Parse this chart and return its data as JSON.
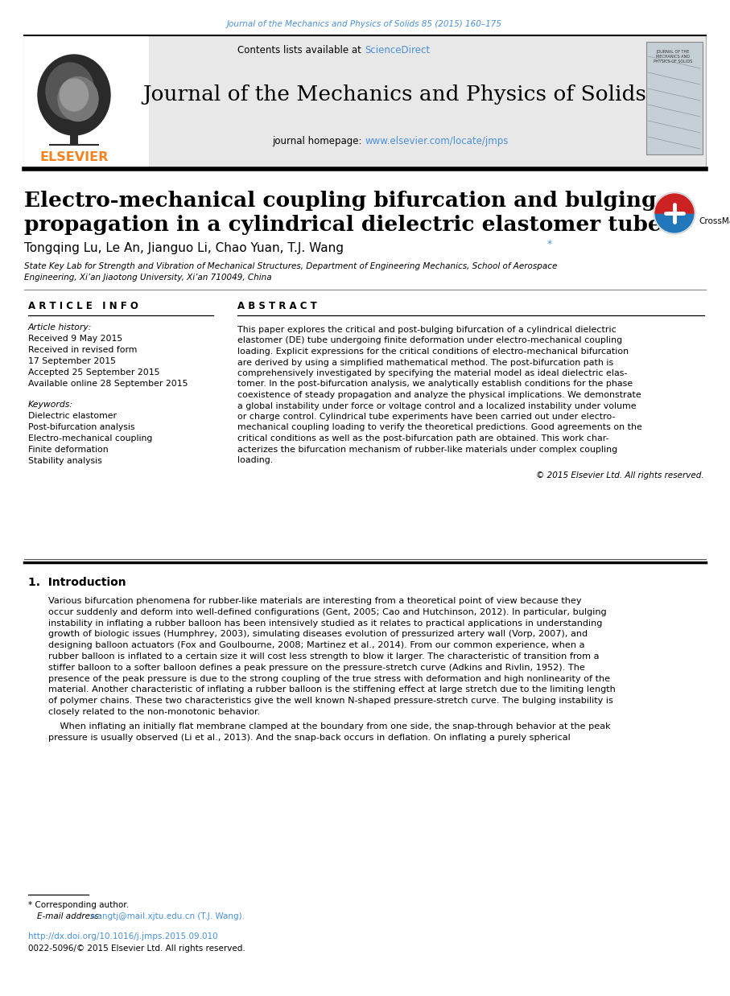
{
  "journal_citation": "Journal of the Mechanics and Physics of Solids 85 (2015) 160–175",
  "contents_text": "Contents lists available at ",
  "sciencedirect_text": "ScienceDirect",
  "journal_name": "Journal of the Mechanics and Physics of Solids",
  "homepage_label": "journal homepage: ",
  "homepage_url": "www.elsevier.com/locate/jmps",
  "elsevier_text": "ELSEVIER",
  "article_title_line1": "Electro-mechanical coupling bifurcation and bulging",
  "article_title_line2": "propagation in a cylindrical dielectric elastomer tube",
  "authors": "Tongqing Lu, Le An, Jianguo Li, Chao Yuan, T.J. Wang",
  "author_asterisk": "*",
  "affiliation_line1": "State Key Lab for Strength and Vibration of Mechanical Structures, Department of Engineering Mechanics, School of Aerospace",
  "affiliation_line2": "Engineering, Xi’an Jiaotong University, Xi’an 710049, China",
  "article_info_label": "A R T I C L E   I N F O",
  "article_history_label": "Article history:",
  "received": "Received 9 May 2015",
  "revised": "Received in revised form",
  "revised_date": "17 September 2015",
  "accepted": "Accepted 25 September 2015",
  "online": "Available online 28 September 2015",
  "keywords_label": "Keywords:",
  "keywords": [
    "Dielectric elastomer",
    "Post-bifurcation analysis",
    "Electro-mechanical coupling",
    "Finite deformation",
    "Stability analysis"
  ],
  "abstract_label": "A B S T R A C T",
  "abstract_lines": [
    "This paper explores the critical and post-bulging bifurcation of a cylindrical dielectric",
    "elastomer (DE) tube undergoing finite deformation under electro-mechanical coupling",
    "loading. Explicit expressions for the critical conditions of electro-mechanical bifurcation",
    "are derived by using a simplified mathematical method. The post-bifurcation path is",
    "comprehensively investigated by specifying the material model as ideal dielectric elas-",
    "tomer. In the post-bifurcation analysis, we analytically establish conditions for the phase",
    "coexistence of steady propagation and analyze the physical implications. We demonstrate",
    "a global instability under force or voltage control and a localized instability under volume",
    "or charge control. Cylindrical tube experiments have been carried out under electro-",
    "mechanical coupling loading to verify the theoretical predictions. Good agreements on the",
    "critical conditions as well as the post-bifurcation path are obtained. This work char-",
    "acterizes the bifurcation mechanism of rubber-like materials under complex coupling",
    "loading."
  ],
  "copyright": "© 2015 Elsevier Ltd. All rights reserved.",
  "section1_label": "1.  Introduction",
  "intro_lines1": [
    "Various bifurcation phenomena for rubber-like materials are interesting from a theoretical point of view because they",
    "occur suddenly and deform into well-defined configurations (Gent, 2005; Cao and Hutchinson, 2012). In particular, bulging",
    "instability in inflating a rubber balloon has been intensively studied as it relates to practical applications in understanding",
    "growth of biologic issues (Humphrey, 2003), simulating diseases evolution of pressurized artery wall (Vorp, 2007), and",
    "designing balloon actuators (Fox and Goulbourne, 2008; Martinez et al., 2014). From our common experience, when a",
    "rubber balloon is inflated to a certain size it will cost less strength to blow it larger. The characteristic of transition from a",
    "stiffer balloon to a softer balloon defines a peak pressure on the pressure-stretch curve (Adkins and Rivlin, 1952). The",
    "presence of the peak pressure is due to the strong coupling of the true stress with deformation and high nonlinearity of the",
    "material. Another characteristic of inflating a rubber balloon is the stiffening effect at large stretch due to the limiting length",
    "of polymer chains. These two characteristics give the well known N-shaped pressure-stretch curve. The bulging instability is",
    "closely related to the non-monotonic behavior."
  ],
  "intro_lines2": [
    "    When inflating an initially flat membrane clamped at the boundary from one side, the snap-through behavior at the peak",
    "pressure is usually observed (Li et al., 2013). And the snap-back occurs in deflation. On inflating a purely spherical"
  ],
  "footnote_asterisk": "* Corresponding author.",
  "email_label": "E-mail address: ",
  "email": "wangtj@mail.xjtu.edu.cn (T.J. Wang).",
  "doi": "http://dx.doi.org/10.1016/j.jmps.2015.09.010",
  "issn": "0022-5096/© 2015 Elsevier Ltd. All rights reserved.",
  "link_color": "#4A90D9",
  "orange_color": "#F5821F",
  "black_color": "#000000",
  "bg_header_color": "#E8E8E8",
  "text_color": "#1a1a1a"
}
